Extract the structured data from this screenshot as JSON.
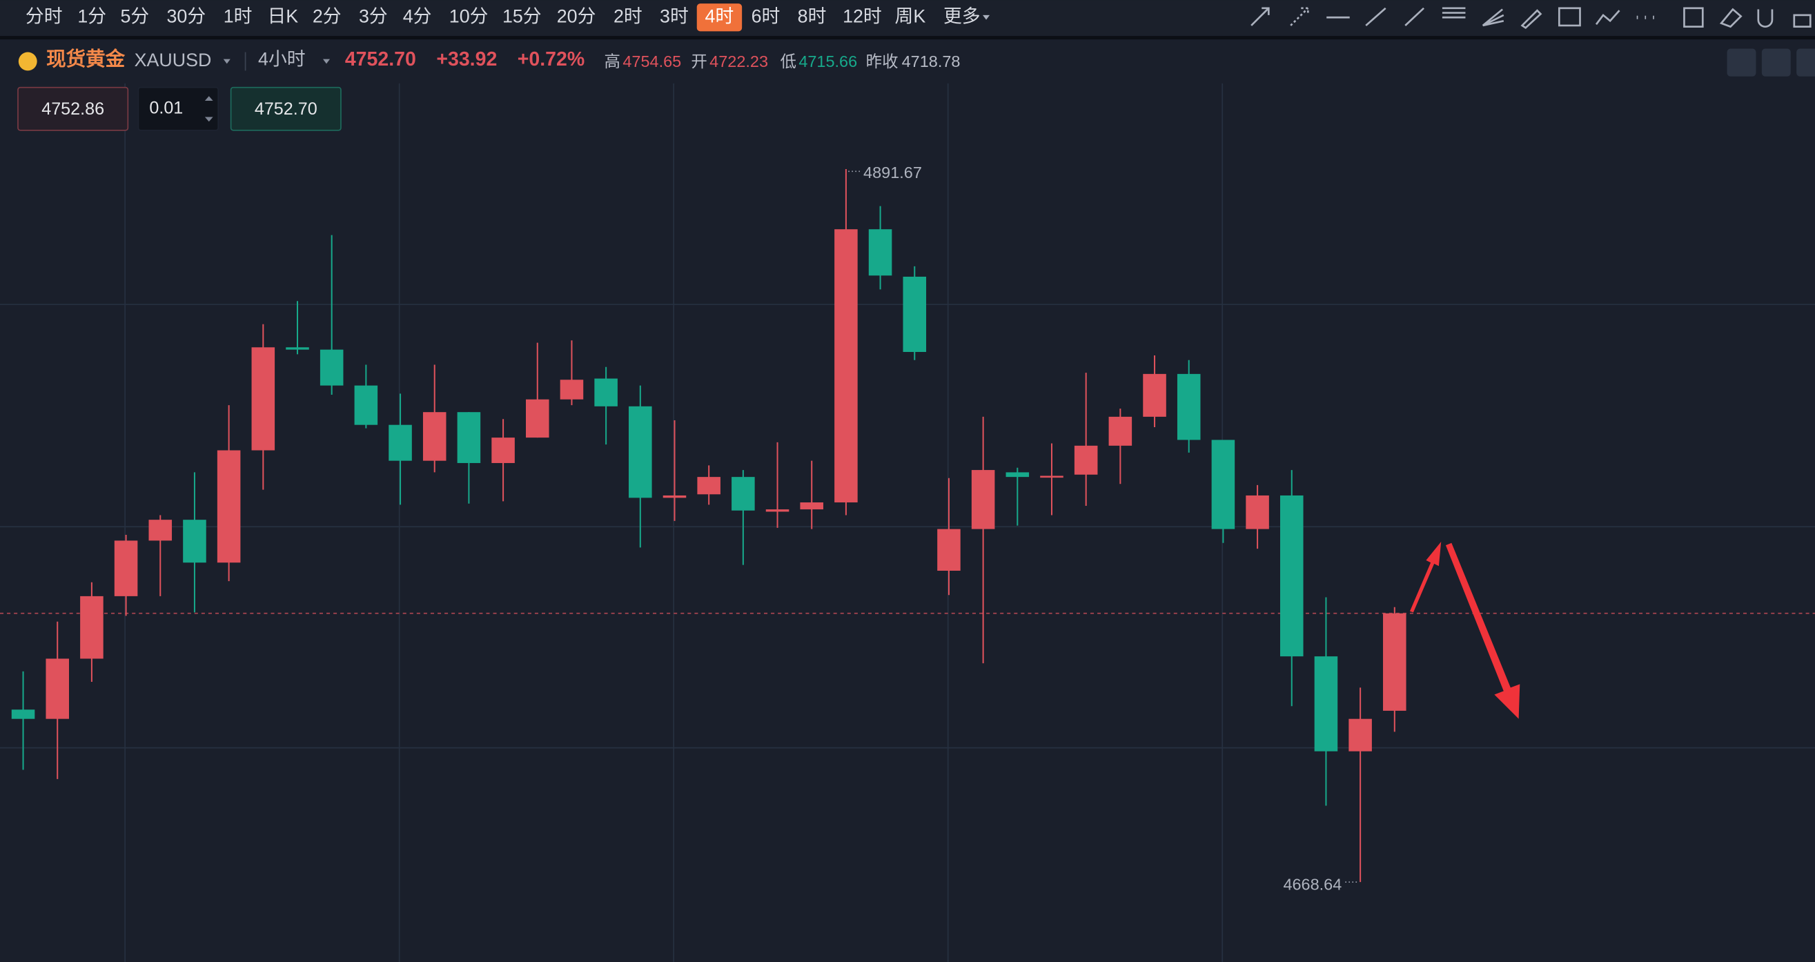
{
  "toolbar": {
    "intervals": [
      "分时",
      "1分",
      "5分",
      "30分",
      "1时",
      "日K",
      "2分",
      "3分",
      "4分",
      "10分",
      "15分",
      "20分",
      "2时",
      "3时",
      "4时",
      "6时",
      "8时",
      "12时",
      "周K",
      "更多"
    ],
    "active": "4时"
  },
  "header": {
    "name": "现货黄金",
    "symbol": "XAUUSD",
    "period": "4小时",
    "price": "4752.70",
    "change": "+33.92",
    "change_pct": "+0.72%",
    "high_label": "高",
    "high": "4754.65",
    "open_label": "开",
    "open": "4722.23",
    "low_label": "低",
    "low": "4715.66",
    "prev_close_label": "昨收",
    "prev_close": "4718.78"
  },
  "order": {
    "sell": "4752.86",
    "qty": "0.01",
    "buy": "4752.70"
  },
  "chart_data": {
    "type": "candlestick",
    "up_color": "#e0525c",
    "down_color": "#17a98b",
    "open": [
      4722.59,
      4719.69,
      4738.52,
      4758.07,
      4775.45,
      4781.97,
      4768.57,
      4803.69,
      4835.91,
      4835.19,
      4823.96,
      4811.65,
      4800.43,
      4815.64,
      4799.71,
      4807.67,
      4819.62,
      4826.14,
      4817.45,
      4788.84,
      4789.93,
      4795.36,
      4784.5,
      4785.22,
      4787.4,
      4872.84,
      4858.0,
      4766.03,
      4779.07,
      4796.81,
      4795.36,
      4796.09,
      4805.14,
      4814.19,
      4827.58,
      4806.95,
      4779.07,
      4789.57,
      4739.24,
      4709.55,
      4722.23
    ],
    "high": [
      4734.54,
      4750.1,
      4762.41,
      4777.26,
      4783.41,
      4796.81,
      4817.81,
      4843.15,
      4850.39,
      4871.03,
      4830.48,
      4821.43,
      4830.48,
      4815.64,
      4813.46,
      4837.36,
      4838.08,
      4829.76,
      4823.96,
      4813.1,
      4798.98,
      4797.53,
      4806.22,
      4800.43,
      4891.67,
      4880.08,
      4861.26,
      4795.0,
      4814.19,
      4798.26,
      4805.86,
      4827.95,
      4816.72,
      4833.38,
      4831.93,
      4806.95,
      4792.83,
      4797.53,
      4757.71,
      4729.47,
      4754.65
    ],
    "low": [
      4703.76,
      4700.86,
      4731.28,
      4751.91,
      4758.07,
      4753.0,
      4762.78,
      4791.38,
      4833.74,
      4821.07,
      4810.57,
      4786.67,
      4796.81,
      4787.03,
      4787.76,
      4807.67,
      4817.81,
      4805.5,
      4773.28,
      4781.6,
      4786.67,
      4767.84,
      4779.43,
      4779.07,
      4783.41,
      4854.01,
      4831.93,
      4758.43,
      4737.07,
      4780.15,
      4783.41,
      4786.31,
      4793.19,
      4810.93,
      4802.96,
      4774.72,
      4772.91,
      4723.67,
      4692.54,
      4668.64,
      4715.66
    ],
    "close": [
      4719.69,
      4738.52,
      4758.07,
      4775.45,
      4781.97,
      4768.57,
      4803.69,
      4835.91,
      4835.19,
      4823.96,
      4811.65,
      4800.43,
      4815.64,
      4799.71,
      4807.67,
      4819.62,
      4825.77,
      4817.45,
      4788.84,
      4789.57,
      4795.36,
      4784.86,
      4785.22,
      4787.4,
      4872.84,
      4858.36,
      4834.46,
      4779.07,
      4797.53,
      4795.36,
      4795.72,
      4805.14,
      4814.19,
      4827.58,
      4806.95,
      4779.07,
      4789.57,
      4739.24,
      4709.55,
      4719.69,
      4752.7
    ]
  }
}
